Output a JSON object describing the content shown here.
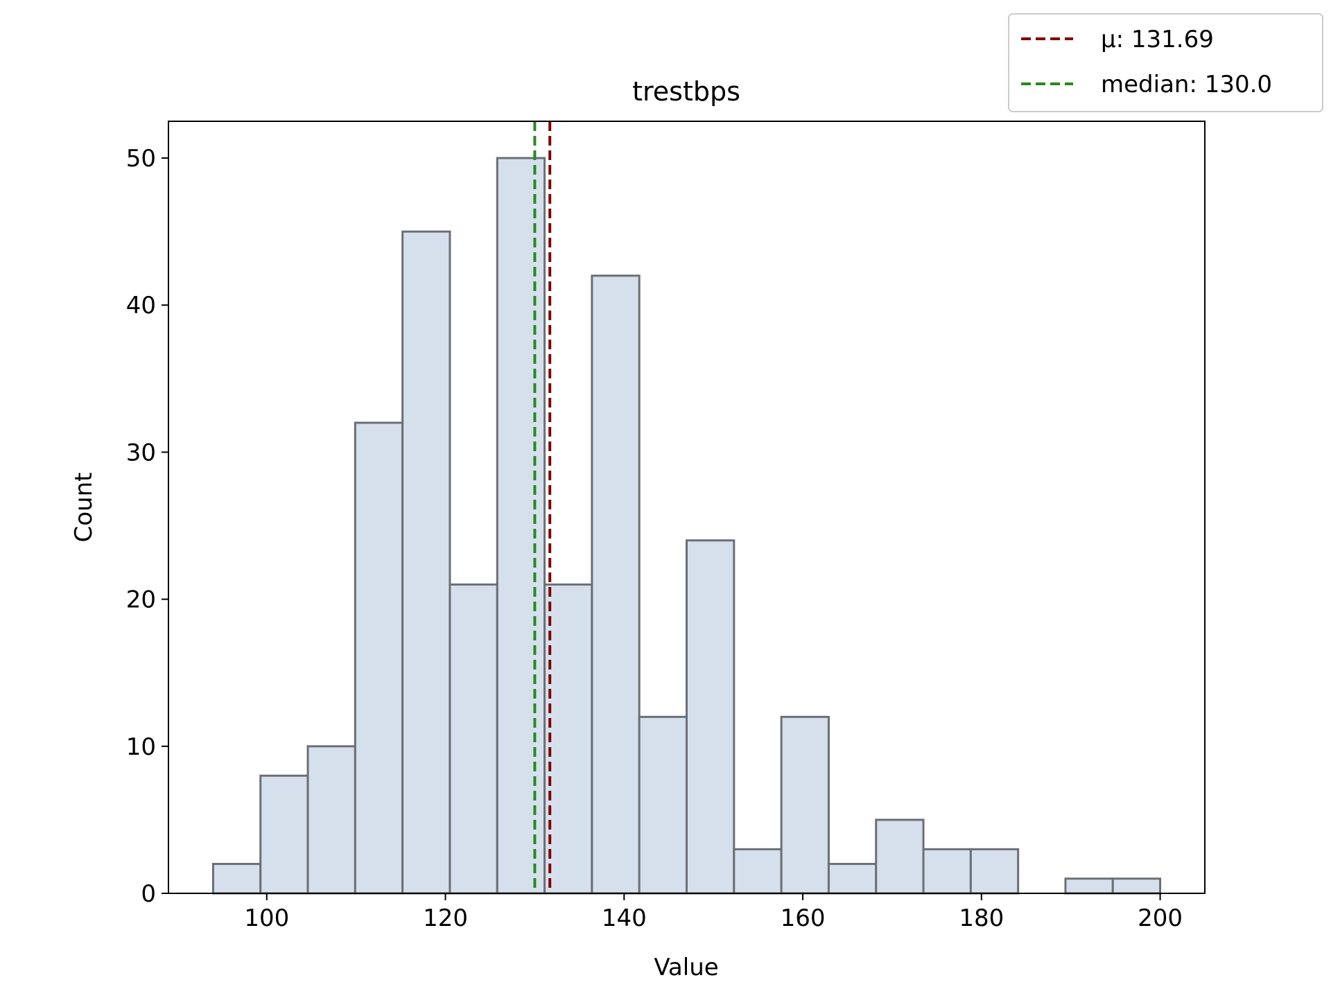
{
  "chart_data": {
    "type": "bar",
    "title": "trestbps",
    "xlabel": "Value",
    "ylabel": "Count",
    "xlim": [
      89,
      205
    ],
    "ylim": [
      0,
      52.5
    ],
    "xticks": [
      100,
      120,
      140,
      160,
      180,
      200
    ],
    "yticks": [
      0,
      10,
      20,
      30,
      40,
      50
    ],
    "bins": [
      94,
      99.3,
      104.6,
      109.9,
      115.2,
      120.5,
      125.8,
      131.1,
      136.4,
      141.7,
      147.0,
      152.3,
      157.6,
      162.9,
      168.2,
      173.5,
      178.8,
      184.1,
      189.4,
      194.7,
      200
    ],
    "counts": [
      2,
      8,
      10,
      32,
      45,
      21,
      50,
      21,
      42,
      12,
      24,
      3,
      12,
      2,
      5,
      3,
      3,
      0,
      1,
      1
    ],
    "grid": false,
    "bar_fill": "#d6e0ec",
    "bar_edge": "#6b6f75",
    "reference_lines": [
      {
        "label": "μ: 131.69",
        "value": 131.69,
        "color": "#800000",
        "style": "dashed"
      },
      {
        "label": "median: 130.0",
        "value": 130.0,
        "color": "#228b22",
        "style": "dashed"
      }
    ],
    "legend": {
      "placement": "top-right, outside axes"
    }
  }
}
